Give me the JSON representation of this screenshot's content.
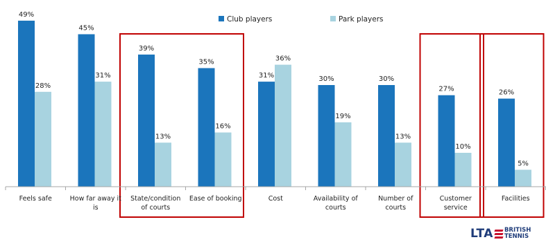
{
  "chart_data": {
    "type": "bar",
    "title": "",
    "xlabel": "",
    "ylabel": "",
    "ylim": [
      0,
      50
    ],
    "grid": false,
    "legend": "top",
    "categories": [
      [
        "Feels safe"
      ],
      [
        "How far away it",
        "is"
      ],
      [
        "State/condition",
        "of courts"
      ],
      [
        "Ease of booking"
      ],
      [
        "Cost"
      ],
      [
        "Availability of",
        "courts"
      ],
      [
        "Number of",
        "courts"
      ],
      [
        "Customer",
        "service"
      ],
      [
        "Facilities"
      ]
    ],
    "series": [
      {
        "name": "Club players",
        "color": "#1b75bc",
        "values": [
          49,
          45,
          39,
          35,
          31,
          30,
          30,
          27,
          26
        ]
      },
      {
        "name": "Park players",
        "color": "#a8d3e0",
        "values": [
          28,
          31,
          13,
          16,
          36,
          19,
          13,
          10,
          5
        ]
      }
    ],
    "value_suffix": "%",
    "highlight_boxes": [
      {
        "categories": [
          2,
          3
        ],
        "color": "#c00000"
      },
      {
        "categories": [
          7
        ],
        "color": "#c00000"
      },
      {
        "categories": [
          8
        ],
        "color": "#c00000"
      }
    ]
  },
  "logo": {
    "text": "LTA",
    "sub_top": "BRITISH",
    "sub_bottom": "TENNIS",
    "primary_color": "#1f3c7a",
    "accent_color": "#c8102e"
  }
}
